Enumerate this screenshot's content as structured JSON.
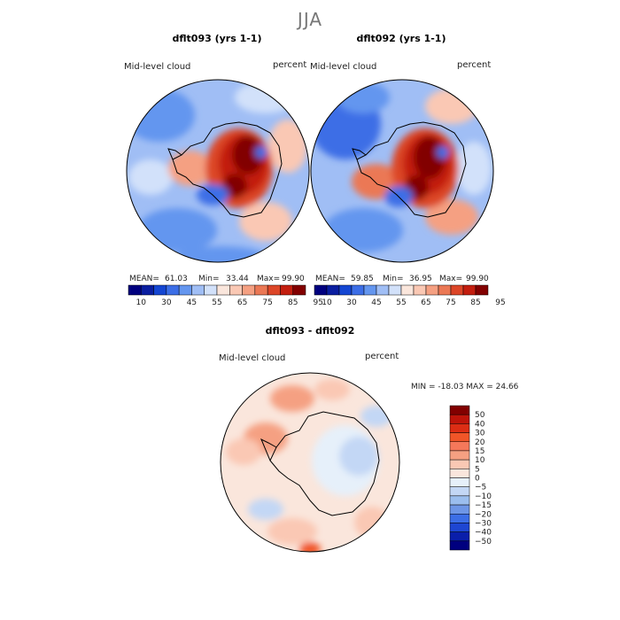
{
  "page": {
    "title": "JJA"
  },
  "panels": [
    {
      "title": "dflt093 (yrs 1-1)",
      "variable": "Mid-level cloud",
      "units": "percent",
      "mean_label": "MEAN=",
      "mean": "61.03",
      "min_label": "Min=",
      "min": "33.44",
      "max_label": "Max=",
      "max": "99.90"
    },
    {
      "title": "dflt092 (yrs 1-1)",
      "variable": "Mid-level cloud",
      "units": "percent",
      "mean_label": "MEAN=",
      "mean": "59.85",
      "min_label": "Min=",
      "min": "36.95",
      "max_label": "Max=",
      "max": "99.90"
    }
  ],
  "diff_panel": {
    "title": "dflt093 - dflt092",
    "variable": "Mid-level cloud",
    "units": "percent",
    "minmax_text": "MIN = -18.03 MAX =  24.66"
  },
  "colors": {
    "abs_scale": [
      "#00007f",
      "#0a1ea0",
      "#1446d2",
      "#3c6ee6",
      "#6496ef",
      "#a0bef5",
      "#d2e1fa",
      "#fae6dc",
      "#fac8b4",
      "#f5a082",
      "#eb7855",
      "#dc4628",
      "#c31e0f",
      "#820000"
    ],
    "diff_scale": [
      "#820000",
      "#be140a",
      "#dc2d14",
      "#f05528",
      "#f5785a",
      "#f5a082",
      "#fac8b4",
      "#fae6dc",
      "#e6f0fa",
      "#c3d7f5",
      "#9bbeee",
      "#6e96e6",
      "#3c6ee6",
      "#1e46d2",
      "#0a1eaa",
      "#00007f"
    ]
  },
  "chart_data": [
    {
      "type": "heatmap",
      "title": "dflt093 (yrs 1-1)",
      "projection": "south-polar-stereographic",
      "colorbar_ticks": [
        "10",
        "30",
        "45",
        "55",
        "65",
        "75",
        "85",
        "95"
      ],
      "mean": 61.03,
      "min": 33.44,
      "max": 99.9
    },
    {
      "type": "heatmap",
      "title": "dflt092 (yrs 1-1)",
      "projection": "south-polar-stereographic",
      "colorbar_ticks": [
        "10",
        "30",
        "45",
        "55",
        "65",
        "75",
        "85",
        "95"
      ],
      "mean": 59.85,
      "min": 36.95,
      "max": 99.9
    },
    {
      "type": "heatmap",
      "title": "dflt093 - dflt092",
      "projection": "south-polar-stereographic",
      "colorbar_ticks": [
        "50",
        "40",
        "30",
        "20",
        "15",
        "10",
        "5",
        "0",
        "−5",
        "−10",
        "−15",
        "−20",
        "−30",
        "−40",
        "−50"
      ],
      "min": -18.03,
      "max": 24.66
    }
  ]
}
